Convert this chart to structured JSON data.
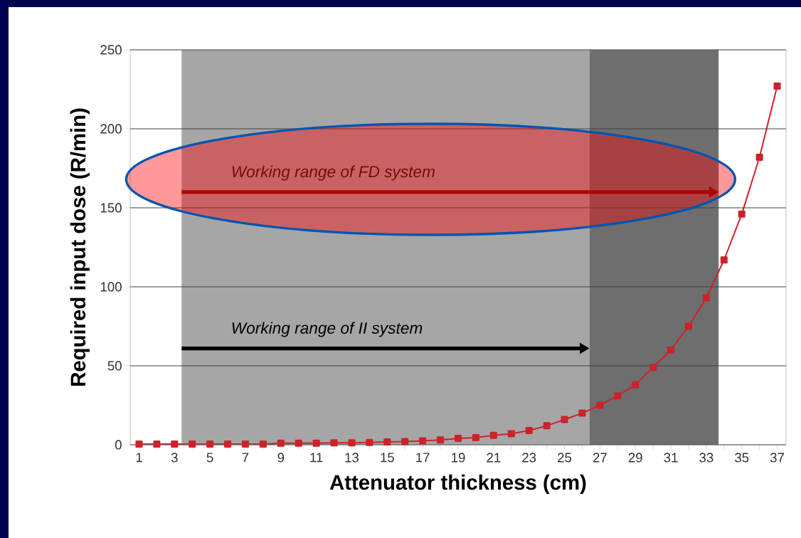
{
  "chart_data": {
    "type": "line",
    "xlabel": "Attenuator thickness (cm)",
    "ylabel": "Required input dose (R/min)",
    "x": [
      1,
      2,
      3,
      4,
      5,
      6,
      7,
      8,
      9,
      10,
      11,
      12,
      13,
      14,
      15,
      16,
      17,
      18,
      19,
      20,
      21,
      22,
      23,
      24,
      25,
      26,
      27,
      28,
      29,
      30,
      31,
      32,
      33,
      34,
      35,
      36,
      37
    ],
    "series": [
      {
        "color": "#cc2229",
        "values": [
          0.5,
          0.5,
          0.5,
          0.5,
          0.5,
          0.5,
          0.5,
          0.5,
          1,
          1,
          1,
          1.2,
          1.2,
          1.5,
          1.8,
          2,
          2.5,
          3,
          4,
          4.5,
          6,
          7,
          9,
          12,
          16,
          20,
          25,
          31,
          38,
          49,
          60,
          75,
          93,
          117,
          146,
          182,
          227
        ]
      }
    ],
    "xlim": [
      0.5,
      37.5
    ],
    "ylim": [
      0,
      250
    ],
    "xticks": [
      1,
      {
        "value": 2,
        "label": null
      },
      3,
      {
        "value": 4,
        "label": null
      },
      5,
      {
        "value": 6,
        "label": null
      },
      7,
      {
        "value": 8,
        "label": null
      },
      9,
      {
        "value": 10,
        "label": null
      },
      11,
      {
        "value": 12,
        "label": null
      },
      13,
      {
        "value": 14,
        "label": null
      },
      15,
      {
        "value": 16,
        "label": null
      },
      17,
      {
        "value": 18,
        "label": null
      },
      19,
      {
        "value": 20,
        "label": null
      },
      21,
      {
        "value": 22,
        "label": null
      },
      23,
      {
        "value": 24,
        "label": null
      },
      25,
      {
        "value": 26,
        "label": null
      },
      27,
      {
        "value": 28,
        "label": null
      },
      29,
      {
        "value": 30,
        "label": null
      },
      31,
      {
        "value": 32,
        "label": null
      },
      33,
      {
        "value": 34,
        "label": null
      },
      35,
      {
        "value": 36,
        "label": null
      },
      37
    ],
    "yticks": [
      0,
      50,
      100,
      150,
      200,
      250
    ],
    "bands": [
      {
        "axis": "x",
        "from": 3.4,
        "to": 26.4,
        "color": "#a6a6a6"
      },
      {
        "axis": "x",
        "from": 26.4,
        "to": 33.7,
        "color": "#6e6e6e"
      }
    ],
    "annotations": [
      "Working range of FD system",
      "Working range of II system"
    ],
    "grid": "y",
    "marker": "square",
    "line_style": "solid"
  }
}
